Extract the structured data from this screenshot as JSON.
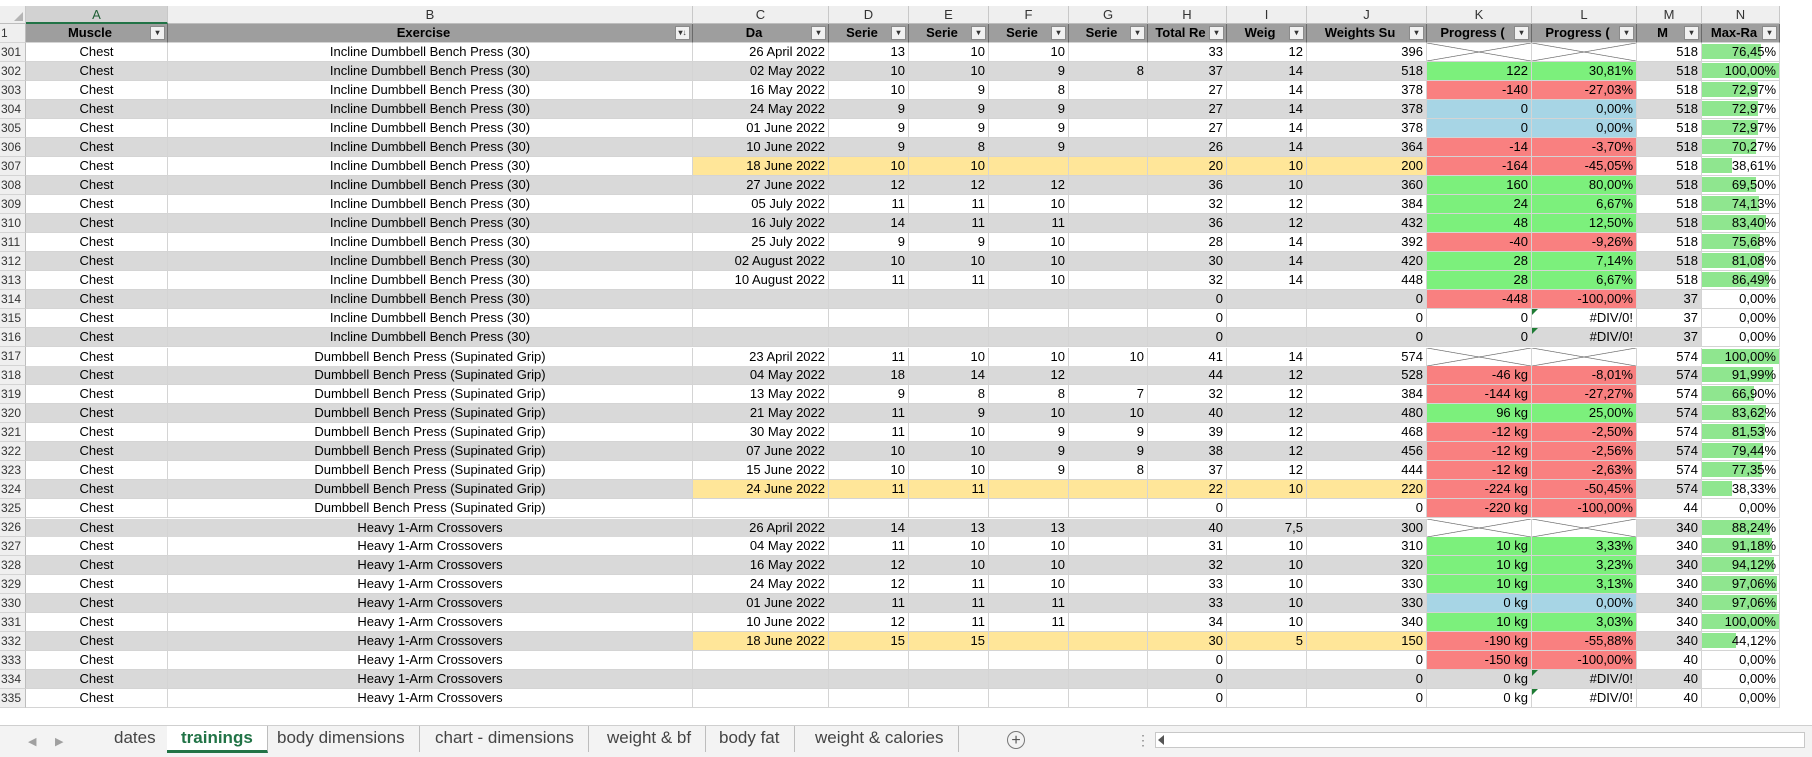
{
  "columns": [
    {
      "letter": "A",
      "width": 142
    },
    {
      "letter": "B",
      "width": 525
    },
    {
      "letter": "C",
      "width": 136
    },
    {
      "letter": "D",
      "width": 80
    },
    {
      "letter": "E",
      "width": 80
    },
    {
      "letter": "F",
      "width": 80
    },
    {
      "letter": "G",
      "width": 79
    },
    {
      "letter": "H",
      "width": 79
    },
    {
      "letter": "I",
      "width": 80
    },
    {
      "letter": "J",
      "width": 120
    },
    {
      "letter": "K",
      "width": 105
    },
    {
      "letter": "L",
      "width": 105
    },
    {
      "letter": "M",
      "width": 65
    },
    {
      "letter": "N",
      "width": 78
    }
  ],
  "selected_column": "A",
  "header_row": {
    "row_number": "1",
    "labels": [
      "Muscle",
      "Exercise",
      "Da",
      "Serie",
      "Serie",
      "Serie",
      "Serie",
      "Total Re",
      "Weig",
      "Weights Su",
      "Progress (",
      "Progress (",
      "M",
      "Max-Ra"
    ]
  },
  "rows": [
    {
      "n": "301",
      "a": "Chest",
      "b": "Incline Dumbbell Bench Press (30)",
      "c": "26 April 2022",
      "d": "13",
      "e": "10",
      "f": "10",
      "g": "",
      "h": "33",
      "i": "12",
      "j": "396",
      "k": "",
      "l": "",
      "m": "518",
      "nv": "76,45%",
      "np": 76.45,
      "bg": "white",
      "kc": "x",
      "lc": "x"
    },
    {
      "n": "302",
      "a": "Chest",
      "b": "Incline Dumbbell Bench Press (30)",
      "c": "02 May 2022",
      "d": "10",
      "e": "10",
      "f": "9",
      "g": "8",
      "h": "37",
      "i": "14",
      "j": "518",
      "k": "122",
      "l": "30,81%",
      "m": "518",
      "nv": "100,00%",
      "np": 100,
      "bg": "grey",
      "kc": "green",
      "lc": "green"
    },
    {
      "n": "303",
      "a": "Chest",
      "b": "Incline Dumbbell Bench Press (30)",
      "c": "16 May 2022",
      "d": "10",
      "e": "9",
      "f": "8",
      "g": "",
      "h": "27",
      "i": "14",
      "j": "378",
      "k": "-140",
      "l": "-27,03%",
      "m": "518",
      "nv": "72,97%",
      "np": 72.97,
      "bg": "white",
      "kc": "red",
      "lc": "red"
    },
    {
      "n": "304",
      "a": "Chest",
      "b": "Incline Dumbbell Bench Press (30)",
      "c": "24 May 2022",
      "d": "9",
      "e": "9",
      "f": "9",
      "g": "",
      "h": "27",
      "i": "14",
      "j": "378",
      "k": "0",
      "l": "0,00%",
      "m": "518",
      "nv": "72,97%",
      "np": 72.97,
      "bg": "grey",
      "kc": "blue",
      "lc": "blue"
    },
    {
      "n": "305",
      "a": "Chest",
      "b": "Incline Dumbbell Bench Press (30)",
      "c": "01 June 2022",
      "d": "9",
      "e": "9",
      "f": "9",
      "g": "",
      "h": "27",
      "i": "14",
      "j": "378",
      "k": "0",
      "l": "0,00%",
      "m": "518",
      "nv": "72,97%",
      "np": 72.97,
      "bg": "white",
      "kc": "blue",
      "lc": "blue"
    },
    {
      "n": "306",
      "a": "Chest",
      "b": "Incline Dumbbell Bench Press (30)",
      "c": "10 June 2022",
      "d": "9",
      "e": "8",
      "f": "9",
      "g": "",
      "h": "26",
      "i": "14",
      "j": "364",
      "k": "-14",
      "l": "-3,70%",
      "m": "518",
      "nv": "70,27%",
      "np": 70.27,
      "bg": "grey",
      "kc": "red",
      "lc": "red"
    },
    {
      "n": "307",
      "a": "Chest",
      "b": "Incline Dumbbell Bench Press (30)",
      "c": "18 June 2022",
      "d": "10",
      "e": "10",
      "f": "",
      "g": "",
      "h": "20",
      "i": "10",
      "j": "200",
      "k": "-164",
      "l": "-45,05%",
      "m": "518",
      "nv": "38,61%",
      "np": 38.61,
      "bg": "white",
      "y": true,
      "kc": "red",
      "lc": "red"
    },
    {
      "n": "308",
      "a": "Chest",
      "b": "Incline Dumbbell Bench Press (30)",
      "c": "27 June 2022",
      "d": "12",
      "e": "12",
      "f": "12",
      "g": "",
      "h": "36",
      "i": "10",
      "j": "360",
      "k": "160",
      "l": "80,00%",
      "m": "518",
      "nv": "69,50%",
      "np": 69.5,
      "bg": "grey",
      "kc": "green",
      "lc": "green"
    },
    {
      "n": "309",
      "a": "Chest",
      "b": "Incline Dumbbell Bench Press (30)",
      "c": "05 July 2022",
      "d": "11",
      "e": "11",
      "f": "10",
      "g": "",
      "h": "32",
      "i": "12",
      "j": "384",
      "k": "24",
      "l": "6,67%",
      "m": "518",
      "nv": "74,13%",
      "np": 74.13,
      "bg": "white",
      "kc": "green",
      "lc": "green"
    },
    {
      "n": "310",
      "a": "Chest",
      "b": "Incline Dumbbell Bench Press (30)",
      "c": "16 July 2022",
      "d": "14",
      "e": "11",
      "f": "11",
      "g": "",
      "h": "36",
      "i": "12",
      "j": "432",
      "k": "48",
      "l": "12,50%",
      "m": "518",
      "nv": "83,40%",
      "np": 83.4,
      "bg": "grey",
      "kc": "green",
      "lc": "green"
    },
    {
      "n": "311",
      "a": "Chest",
      "b": "Incline Dumbbell Bench Press (30)",
      "c": "25 July 2022",
      "d": "9",
      "e": "9",
      "f": "10",
      "g": "",
      "h": "28",
      "i": "14",
      "j": "392",
      "k": "-40",
      "l": "-9,26%",
      "m": "518",
      "nv": "75,68%",
      "np": 75.68,
      "bg": "white",
      "kc": "red",
      "lc": "red"
    },
    {
      "n": "312",
      "a": "Chest",
      "b": "Incline Dumbbell Bench Press (30)",
      "c": "02 August 2022",
      "d": "10",
      "e": "10",
      "f": "10",
      "g": "",
      "h": "30",
      "i": "14",
      "j": "420",
      "k": "28",
      "l": "7,14%",
      "m": "518",
      "nv": "81,08%",
      "np": 81.08,
      "bg": "grey",
      "kc": "green",
      "lc": "green"
    },
    {
      "n": "313",
      "a": "Chest",
      "b": "Incline Dumbbell Bench Press (30)",
      "c": "10 August 2022",
      "d": "11",
      "e": "11",
      "f": "10",
      "g": "",
      "h": "32",
      "i": "14",
      "j": "448",
      "k": "28",
      "l": "6,67%",
      "m": "518",
      "nv": "86,49%",
      "np": 86.49,
      "bg": "white",
      "kc": "green",
      "lc": "green"
    },
    {
      "n": "314",
      "a": "Chest",
      "b": "Incline Dumbbell Bench Press (30)",
      "c": "",
      "d": "",
      "e": "",
      "f": "",
      "g": "",
      "h": "0",
      "i": "",
      "j": "0",
      "k": "-448",
      "l": "-100,00%",
      "m": "37",
      "nv": "0,00%",
      "np": 0,
      "bg": "grey",
      "kc": "red",
      "lc": "red"
    },
    {
      "n": "315",
      "a": "Chest",
      "b": "Incline Dumbbell Bench Press (30)",
      "c": "",
      "d": "",
      "e": "",
      "f": "",
      "g": "",
      "h": "0",
      "i": "",
      "j": "0",
      "k": "0",
      "l": "#DIV/0!",
      "m": "37",
      "nv": "0,00%",
      "np": 0,
      "bg": "white",
      "kc": "",
      "lc": "tri"
    },
    {
      "n": "316",
      "a": "Chest",
      "b": "Incline Dumbbell Bench Press (30)",
      "c": "",
      "d": "",
      "e": "",
      "f": "",
      "g": "",
      "h": "0",
      "i": "",
      "j": "0",
      "k": "0",
      "l": "#DIV/0!",
      "m": "37",
      "nv": "0,00%",
      "np": 0,
      "bg": "grey",
      "kc": "",
      "lc": "tri"
    },
    {
      "n": "317",
      "a": "Chest",
      "b": "Dumbbell Bench Press (Supinated Grip)",
      "c": "23 April 2022",
      "d": "11",
      "e": "10",
      "f": "10",
      "g": "10",
      "h": "41",
      "i": "14",
      "j": "574",
      "k": "",
      "l": "",
      "m": "574",
      "nv": "100,00%",
      "np": 100,
      "bg": "white",
      "kc": "x",
      "lc": "x",
      "sep": true
    },
    {
      "n": "318",
      "a": "Chest",
      "b": "Dumbbell Bench Press (Supinated Grip)",
      "c": "04 May 2022",
      "d": "18",
      "e": "14",
      "f": "12",
      "g": "",
      "h": "44",
      "i": "12",
      "j": "528",
      "k": "-46 kg",
      "l": "-8,01%",
      "m": "574",
      "nv": "91,99%",
      "np": 91.99,
      "bg": "grey",
      "kc": "red",
      "lc": "red"
    },
    {
      "n": "319",
      "a": "Chest",
      "b": "Dumbbell Bench Press (Supinated Grip)",
      "c": "13 May 2022",
      "d": "9",
      "e": "8",
      "f": "8",
      "g": "7",
      "h": "32",
      "i": "12",
      "j": "384",
      "k": "-144 kg",
      "l": "-27,27%",
      "m": "574",
      "nv": "66,90%",
      "np": 66.9,
      "bg": "white",
      "kc": "red",
      "lc": "red"
    },
    {
      "n": "320",
      "a": "Chest",
      "b": "Dumbbell Bench Press (Supinated Grip)",
      "c": "21 May 2022",
      "d": "11",
      "e": "9",
      "f": "10",
      "g": "10",
      "h": "40",
      "i": "12",
      "j": "480",
      "k": "96 kg",
      "l": "25,00%",
      "m": "574",
      "nv": "83,62%",
      "np": 83.62,
      "bg": "grey",
      "kc": "green",
      "lc": "green"
    },
    {
      "n": "321",
      "a": "Chest",
      "b": "Dumbbell Bench Press (Supinated Grip)",
      "c": "30 May 2022",
      "d": "11",
      "e": "10",
      "f": "9",
      "g": "9",
      "h": "39",
      "i": "12",
      "j": "468",
      "k": "-12 kg",
      "l": "-2,50%",
      "m": "574",
      "nv": "81,53%",
      "np": 81.53,
      "bg": "white",
      "kc": "red",
      "lc": "red"
    },
    {
      "n": "322",
      "a": "Chest",
      "b": "Dumbbell Bench Press (Supinated Grip)",
      "c": "07 June 2022",
      "d": "10",
      "e": "10",
      "f": "9",
      "g": "9",
      "h": "38",
      "i": "12",
      "j": "456",
      "k": "-12 kg",
      "l": "-2,56%",
      "m": "574",
      "nv": "79,44%",
      "np": 79.44,
      "bg": "grey",
      "kc": "red",
      "lc": "red"
    },
    {
      "n": "323",
      "a": "Chest",
      "b": "Dumbbell Bench Press (Supinated Grip)",
      "c": "15 June 2022",
      "d": "10",
      "e": "10",
      "f": "9",
      "g": "8",
      "h": "37",
      "i": "12",
      "j": "444",
      "k": "-12 kg",
      "l": "-2,63%",
      "m": "574",
      "nv": "77,35%",
      "np": 77.35,
      "bg": "white",
      "kc": "red",
      "lc": "red"
    },
    {
      "n": "324",
      "a": "Chest",
      "b": "Dumbbell Bench Press (Supinated Grip)",
      "c": "24 June 2022",
      "d": "11",
      "e": "11",
      "f": "",
      "g": "",
      "h": "22",
      "i": "10",
      "j": "220",
      "k": "-224 kg",
      "l": "-50,45%",
      "m": "574",
      "nv": "38,33%",
      "np": 38.33,
      "bg": "grey",
      "y": true,
      "kc": "red",
      "lc": "red"
    },
    {
      "n": "325",
      "a": "Chest",
      "b": "Dumbbell Bench Press (Supinated Grip)",
      "c": "",
      "d": "",
      "e": "",
      "f": "",
      "g": "",
      "h": "0",
      "i": "",
      "j": "0",
      "k": "-220 kg",
      "l": "-100,00%",
      "m": "44",
      "nv": "0,00%",
      "np": 0,
      "bg": "white",
      "kc": "red",
      "lc": "red"
    },
    {
      "n": "326",
      "a": "Chest",
      "b": "Heavy 1-Arm Crossovers",
      "c": "26 April 2022",
      "d": "14",
      "e": "13",
      "f": "13",
      "g": "",
      "h": "40",
      "i": "7,5",
      "j": "300",
      "k": "",
      "l": "",
      "m": "340",
      "nv": "88,24%",
      "np": 88.24,
      "bg": "grey",
      "kc": "x",
      "lc": "x",
      "sep": true
    },
    {
      "n": "327",
      "a": "Chest",
      "b": "Heavy 1-Arm Crossovers",
      "c": "04 May 2022",
      "d": "11",
      "e": "10",
      "f": "10",
      "g": "",
      "h": "31",
      "i": "10",
      "j": "310",
      "k": "10 kg",
      "l": "3,33%",
      "m": "340",
      "nv": "91,18%",
      "np": 91.18,
      "bg": "white",
      "kc": "green",
      "lc": "green"
    },
    {
      "n": "328",
      "a": "Chest",
      "b": "Heavy 1-Arm Crossovers",
      "c": "16 May 2022",
      "d": "12",
      "e": "10",
      "f": "10",
      "g": "",
      "h": "32",
      "i": "10",
      "j": "320",
      "k": "10 kg",
      "l": "3,23%",
      "m": "340",
      "nv": "94,12%",
      "np": 94.12,
      "bg": "grey",
      "kc": "green",
      "lc": "green"
    },
    {
      "n": "329",
      "a": "Chest",
      "b": "Heavy 1-Arm Crossovers",
      "c": "24 May 2022",
      "d": "12",
      "e": "11",
      "f": "10",
      "g": "",
      "h": "33",
      "i": "10",
      "j": "330",
      "k": "10 kg",
      "l": "3,13%",
      "m": "340",
      "nv": "97,06%",
      "np": 97.06,
      "bg": "white",
      "kc": "green",
      "lc": "green"
    },
    {
      "n": "330",
      "a": "Chest",
      "b": "Heavy 1-Arm Crossovers",
      "c": "01 June 2022",
      "d": "11",
      "e": "11",
      "f": "11",
      "g": "",
      "h": "33",
      "i": "10",
      "j": "330",
      "k": "0 kg",
      "l": "0,00%",
      "m": "340",
      "nv": "97,06%",
      "np": 97.06,
      "bg": "grey",
      "kc": "blue",
      "lc": "blue"
    },
    {
      "n": "331",
      "a": "Chest",
      "b": "Heavy 1-Arm Crossovers",
      "c": "10 June 2022",
      "d": "12",
      "e": "11",
      "f": "11",
      "g": "",
      "h": "34",
      "i": "10",
      "j": "340",
      "k": "10 kg",
      "l": "3,03%",
      "m": "340",
      "nv": "100,00%",
      "np": 100,
      "bg": "white",
      "kc": "green",
      "lc": "green"
    },
    {
      "n": "332",
      "a": "Chest",
      "b": "Heavy 1-Arm Crossovers",
      "c": "18 June 2022",
      "d": "15",
      "e": "15",
      "f": "",
      "g": "",
      "h": "30",
      "i": "5",
      "j": "150",
      "k": "-190 kg",
      "l": "-55,88%",
      "m": "340",
      "nv": "44,12%",
      "np": 44.12,
      "bg": "grey",
      "y": true,
      "kc": "red",
      "lc": "red"
    },
    {
      "n": "333",
      "a": "Chest",
      "b": "Heavy 1-Arm Crossovers",
      "c": "",
      "d": "",
      "e": "",
      "f": "",
      "g": "",
      "h": "0",
      "i": "",
      "j": "0",
      "k": "-150 kg",
      "l": "-100,00%",
      "m": "40",
      "nv": "0,00%",
      "np": 0,
      "bg": "white",
      "kc": "red",
      "lc": "red"
    },
    {
      "n": "334",
      "a": "Chest",
      "b": "Heavy 1-Arm Crossovers",
      "c": "",
      "d": "",
      "e": "",
      "f": "",
      "g": "",
      "h": "0",
      "i": "",
      "j": "0",
      "k": "0 kg",
      "l": "#DIV/0!",
      "m": "40",
      "nv": "0,00%",
      "np": 0,
      "bg": "grey",
      "kc": "",
      "lc": "tri"
    },
    {
      "n": "335",
      "a": "Chest",
      "b": "Heavy 1-Arm Crossovers",
      "c": "",
      "d": "",
      "e": "",
      "f": "",
      "g": "",
      "h": "0",
      "i": "",
      "j": "0",
      "k": "0 kg",
      "l": "#DIV/0!",
      "m": "40",
      "nv": "0,00%",
      "np": 0,
      "bg": "white",
      "kc": "",
      "lc": "tri"
    }
  ],
  "sheet_tabs": [
    "dates",
    "trainings",
    "body dimensions",
    "chart - dimensions",
    "weight & bf",
    "body fat",
    "weight & calories"
  ],
  "active_tab": "trainings",
  "add_sheet_symbol": "+",
  "colors": {
    "positive": "#7cf07c",
    "negative": "#f98080",
    "neutral": "#a7d5e5",
    "highlight_row": "#ffe699",
    "header_fill": "#9e9e9e",
    "accent": "#217346"
  }
}
